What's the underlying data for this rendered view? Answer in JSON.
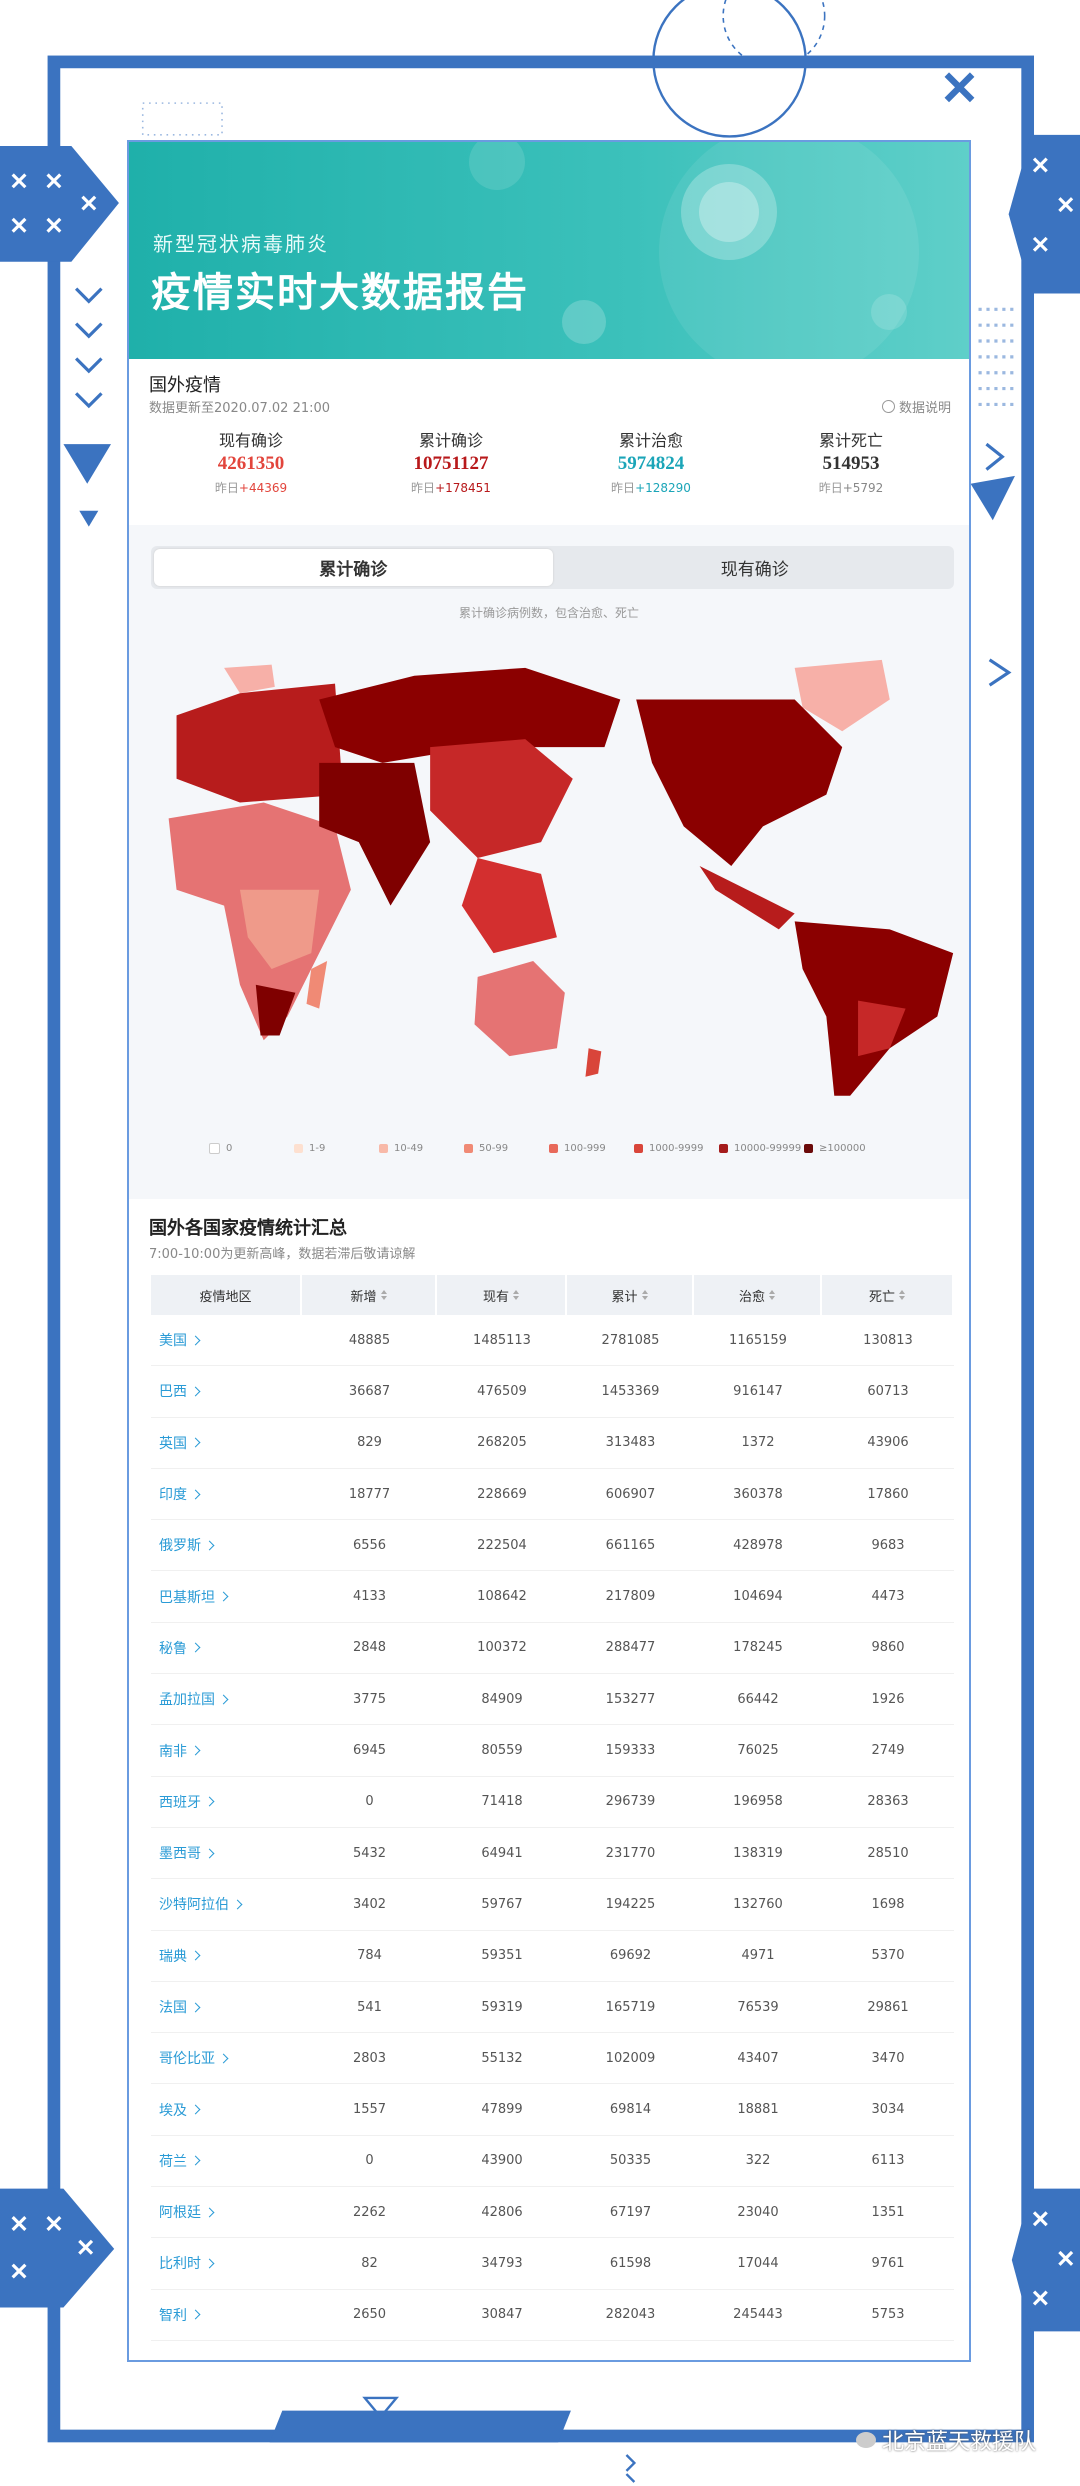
{
  "banner": {
    "subtitle": "新型冠状病毒肺炎",
    "title": "疫情实时大数据报告"
  },
  "overview": {
    "title": "国外疫情",
    "updated": "数据更新至2020.07.02 21:00",
    "note": "数据说明",
    "stats": [
      {
        "label": "现有确诊",
        "value": 4261350,
        "change_label": "昨日",
        "change": "+44369"
      },
      {
        "label": "累计确诊",
        "value": 10751127,
        "change_label": "昨日",
        "change": "+178451"
      },
      {
        "label": "累计治愈",
        "value": 5974824,
        "change_label": "昨日",
        "change": "+128290"
      },
      {
        "label": "累计死亡",
        "value": 514953,
        "change_label": "昨日",
        "change": "+5792"
      }
    ]
  },
  "tabs": [
    "累计确诊",
    "现有确诊"
  ],
  "map": {
    "caption": "累计确诊病例数，包含治愈、死亡",
    "legend": [
      "0",
      "1-9",
      "10-49",
      "50-99",
      "100-999",
      "1000-9999",
      "10000-99999",
      "≥100000"
    ]
  },
  "table": {
    "title": "国外各国家疫情统计汇总",
    "subtitle": "7:00-10:00为更新高峰，数据若滞后敬请谅解",
    "columns": [
      "疫情地区",
      "新增",
      "现有",
      "累计",
      "治愈",
      "死亡"
    ],
    "rows": [
      [
        "美国",
        48885,
        1485113,
        2781085,
        1165159,
        130813
      ],
      [
        "巴西",
        36687,
        476509,
        1453369,
        916147,
        60713
      ],
      [
        "英国",
        829,
        268205,
        313483,
        1372,
        43906
      ],
      [
        "印度",
        18777,
        228669,
        606907,
        360378,
        17860
      ],
      [
        "俄罗斯",
        6556,
        222504,
        661165,
        428978,
        9683
      ],
      [
        "巴基斯坦",
        4133,
        108642,
        217809,
        104694,
        4473
      ],
      [
        "秘鲁",
        2848,
        100372,
        288477,
        178245,
        9860
      ],
      [
        "孟加拉国",
        3775,
        84909,
        153277,
        66442,
        1926
      ],
      [
        "南非",
        6945,
        80559,
        159333,
        76025,
        2749
      ],
      [
        "西班牙",
        0,
        71418,
        296739,
        196958,
        28363
      ],
      [
        "墨西哥",
        5432,
        64941,
        231770,
        138319,
        28510
      ],
      [
        "沙特阿拉伯",
        3402,
        59767,
        194225,
        132760,
        1698
      ],
      [
        "瑞典",
        784,
        59351,
        69692,
        4971,
        5370
      ],
      [
        "法国",
        541,
        59319,
        165719,
        76539,
        29861
      ],
      [
        "哥伦比亚",
        2803,
        55132,
        102009,
        43407,
        3470
      ],
      [
        "埃及",
        1557,
        47899,
        69814,
        18881,
        3034
      ],
      [
        "荷兰",
        0,
        43900,
        50335,
        322,
        6113
      ],
      [
        "阿根廷",
        2262,
        42806,
        67197,
        23040,
        1351
      ],
      [
        "比利时",
        82,
        34793,
        61598,
        17044,
        9761
      ],
      [
        "智利",
        2650,
        30847,
        282043,
        245443,
        5753
      ]
    ]
  },
  "watermark": "北京蓝天救援队"
}
